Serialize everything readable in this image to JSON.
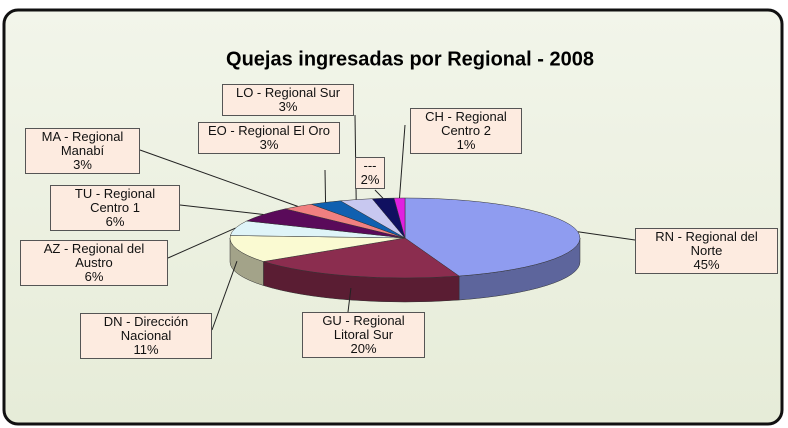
{
  "chart_data": {
    "type": "pie",
    "title": "Quejas ingresadas por Regional - 2008",
    "categories": [
      "RN - Regional del Norte",
      "GU - Regional Litoral Sur",
      "DN - Dirección Nacional",
      "AZ - Regional del Austro",
      "TU - Regional Centro 1",
      "MA - Regional Manabí",
      "EO - Regional El Oro",
      "LO - Regional Sur",
      "---",
      "CH - Regional Centro 2"
    ],
    "values": [
      45,
      20,
      11,
      6,
      6,
      3,
      3,
      3,
      2,
      1
    ],
    "value_labels": [
      "45%",
      "20%",
      "11%",
      "6%",
      "6%",
      "3%",
      "3%",
      "3%",
      "2%",
      "1%"
    ],
    "colors": [
      "#8f9cf0",
      "#8b2d4f",
      "#fafad2",
      "#dff4f8",
      "#5a0a5a",
      "#f08080",
      "#1060b0",
      "#c8c8f0",
      "#101060",
      "#e020e0"
    ],
    "legend": false
  }
}
